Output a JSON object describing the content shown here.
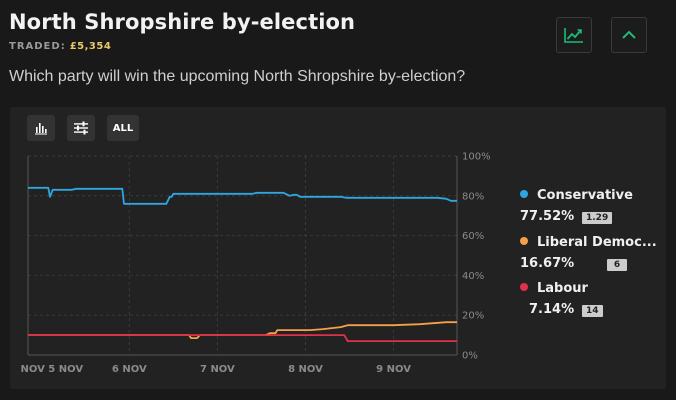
{
  "header": {
    "title": "North Shropshire by-election",
    "traded_label": "TRADED:",
    "traded_amount": "£5,354",
    "question": "Which party will win the upcoming North Shropshire by-election?",
    "chart_toggle_icon": "trending-chart-icon",
    "collapse_icon": "chevron-up-icon",
    "accent_color": "#1fb978"
  },
  "toolbar": {
    "bar_icon": "bar-chart-icon",
    "filter_icon": "sliders-icon",
    "range_label": "ALL"
  },
  "legend": [
    {
      "name": "Conservative",
      "pct": "77.52%",
      "badge": "1.29",
      "color": "#2ea7e0"
    },
    {
      "name": "Liberal Democ...",
      "pct": "16.67%",
      "badge": "6",
      "color": "#f5a04a"
    },
    {
      "name": "Labour",
      "pct": "7.14%",
      "badge": "14",
      "color": "#e0314b"
    }
  ],
  "chart_data": {
    "type": "line",
    "xlabel": "",
    "ylabel": "",
    "ylim": [
      0,
      100
    ],
    "x_range": [
      4.85,
      9.72
    ],
    "y_ticks": [
      "100%",
      "80%",
      "60%",
      "40%",
      "20%",
      "0%"
    ],
    "x_ticks": [
      {
        "label": "NOV 5 NOV",
        "x": 5.12
      },
      {
        "label": "6 NOV",
        "x": 6.0
      },
      {
        "label": "7 NOV",
        "x": 7.0
      },
      {
        "label": "8 NOV",
        "x": 8.0
      },
      {
        "label": "9 NOV",
        "x": 9.0
      }
    ],
    "grid": true,
    "series": [
      {
        "name": "Conservative",
        "color": "#2ea7e0",
        "points": [
          [
            4.85,
            84
          ],
          [
            5.08,
            84
          ],
          [
            5.1,
            79.5
          ],
          [
            5.13,
            83
          ],
          [
            5.35,
            83
          ],
          [
            5.4,
            83.5
          ],
          [
            5.6,
            83.5
          ],
          [
            5.66,
            83.5
          ],
          [
            5.92,
            83.5
          ],
          [
            5.94,
            76
          ],
          [
            6.42,
            76
          ],
          [
            6.46,
            79.5
          ],
          [
            6.48,
            79.5
          ],
          [
            6.5,
            81
          ],
          [
            7.2,
            81
          ],
          [
            7.4,
            81
          ],
          [
            7.45,
            81.5
          ],
          [
            7.75,
            81.5
          ],
          [
            7.82,
            80
          ],
          [
            7.87,
            80.5
          ],
          [
            7.9,
            80.5
          ],
          [
            7.94,
            79.5
          ],
          [
            8.4,
            79.5
          ],
          [
            8.46,
            79
          ],
          [
            9.5,
            79
          ],
          [
            9.6,
            78.5
          ],
          [
            9.65,
            77.5
          ],
          [
            9.72,
            77.5
          ]
        ]
      },
      {
        "name": "Liberal Democ...",
        "color": "#f5a04a",
        "points": [
          [
            4.85,
            10
          ],
          [
            6.68,
            10
          ],
          [
            6.7,
            8.5
          ],
          [
            6.77,
            8.5
          ],
          [
            6.8,
            10
          ],
          [
            7.55,
            10
          ],
          [
            7.6,
            11
          ],
          [
            7.66,
            11
          ],
          [
            7.68,
            12.5
          ],
          [
            8.05,
            12.5
          ],
          [
            8.2,
            13
          ],
          [
            8.4,
            14
          ],
          [
            8.48,
            15
          ],
          [
            9.0,
            15
          ],
          [
            9.3,
            15.5
          ],
          [
            9.6,
            16.5
          ],
          [
            9.72,
            16.5
          ]
        ]
      },
      {
        "name": "Labour",
        "color": "#e0314b",
        "points": [
          [
            4.85,
            10
          ],
          [
            8.44,
            10
          ],
          [
            8.48,
            7
          ],
          [
            9.72,
            7
          ]
        ]
      }
    ]
  }
}
